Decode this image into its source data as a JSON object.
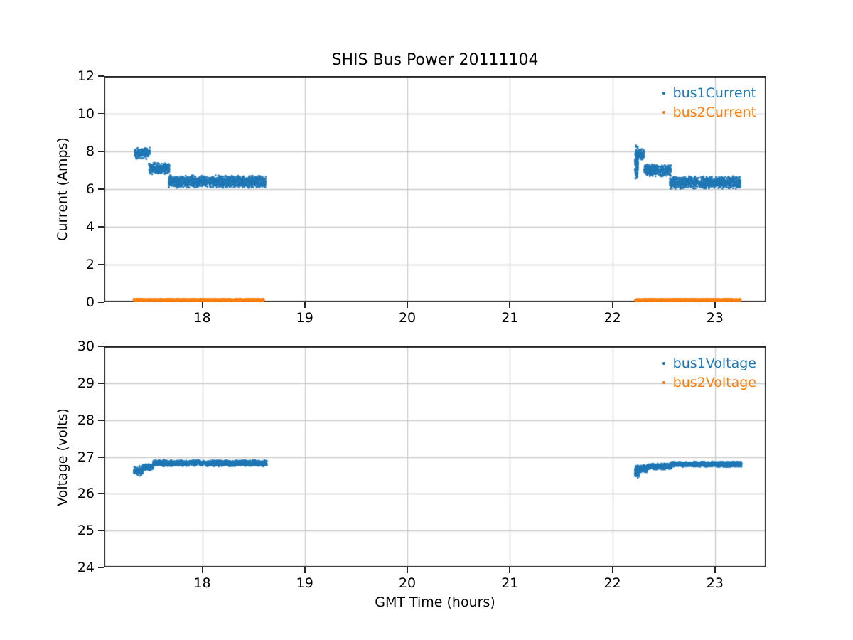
{
  "figure_title": "SHIS Bus Power 20111104",
  "chart_data": [
    {
      "type": "scatter",
      "title": "SHIS Bus Power 20111104",
      "xlabel": "",
      "ylabel": "Current (Amps)",
      "xlim": [
        17.04,
        23.5
      ],
      "ylim": [
        0,
        12
      ],
      "xticks": [
        18,
        19,
        20,
        21,
        22,
        23
      ],
      "yticks": [
        0,
        2,
        4,
        6,
        8,
        10,
        12
      ],
      "grid": true,
      "legend_position": "upper right",
      "point_density_per_hour": 1600,
      "series": [
        {
          "name": "bus1Current",
          "color": "#1f77b4",
          "marker": "dot",
          "segments": [
            {
              "x": [
                17.34,
                17.49
              ],
              "mean": 7.9,
              "spread": 0.32
            },
            {
              "x": [
                17.48,
                17.68
              ],
              "mean": 7.1,
              "spread": 0.33
            },
            {
              "x": [
                17.67,
                18.62
              ],
              "mean": 6.4,
              "spread": 0.35
            },
            {
              "x": [
                22.22,
                22.25
              ],
              "mean": 7.4,
              "spread": 0.95,
              "n": 160
            },
            {
              "x": [
                22.23,
                22.31
              ],
              "mean": 7.85,
              "spread": 0.33
            },
            {
              "x": [
                22.31,
                22.57
              ],
              "mean": 7.0,
              "spread": 0.35
            },
            {
              "x": [
                22.56,
                23.25
              ],
              "mean": 6.35,
              "spread": 0.35
            }
          ]
        },
        {
          "name": "bus2Current",
          "color": "#ff7f0e",
          "marker": "dot",
          "segments": [
            {
              "x": [
                17.33,
                18.6
              ],
              "mean": 0.12,
              "spread": 0.07
            },
            {
              "x": [
                22.22,
                23.25
              ],
              "mean": 0.12,
              "spread": 0.07
            }
          ]
        }
      ]
    },
    {
      "type": "scatter",
      "title": "",
      "xlabel": "GMT Time (hours)",
      "ylabel": "Voltage (volts)",
      "xlim": [
        17.04,
        23.5
      ],
      "ylim": [
        24,
        30
      ],
      "xticks": [
        18,
        19,
        20,
        21,
        22,
        23
      ],
      "yticks": [
        24,
        25,
        26,
        27,
        28,
        29,
        30
      ],
      "grid": true,
      "legend_position": "upper right",
      "point_density_per_hour": 1600,
      "series": [
        {
          "name": "bus1Voltage",
          "color": "#1f77b4",
          "marker": "dot",
          "segments": [
            {
              "x": [
                17.33,
                17.42
              ],
              "mean": 26.62,
              "spread": 0.14
            },
            {
              "x": [
                17.42,
                17.52
              ],
              "mean": 26.72,
              "spread": 0.1
            },
            {
              "x": [
                17.52,
                18.63
              ],
              "mean": 26.83,
              "spread": 0.09
            },
            {
              "x": [
                22.22,
                22.26
              ],
              "mean": 26.6,
              "spread": 0.18,
              "n": 200
            },
            {
              "x": [
                22.24,
                22.34
              ],
              "mean": 26.68,
              "spread": 0.12
            },
            {
              "x": [
                22.34,
                22.58
              ],
              "mean": 26.74,
              "spread": 0.09
            },
            {
              "x": [
                22.56,
                23.26
              ],
              "mean": 26.8,
              "spread": 0.08
            }
          ]
        },
        {
          "name": "bus2Voltage",
          "color": "#ff7f0e",
          "marker": "dot",
          "segments": []
        }
      ]
    }
  ]
}
